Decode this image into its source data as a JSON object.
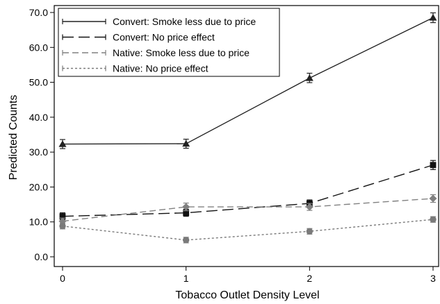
{
  "chart_data": {
    "type": "line",
    "title": "",
    "xlabel": "Tobacco Outlet Density Level",
    "ylabel": "Predicted Counts",
    "x": [
      0,
      1,
      2,
      3
    ],
    "x_tick_labels": [
      "0",
      "1",
      "2",
      "3"
    ],
    "xlim": [
      0,
      3
    ],
    "ylim": [
      0,
      70
    ],
    "y_ticks": [
      0,
      10,
      20,
      30,
      40,
      50,
      60,
      70
    ],
    "y_tick_labels": [
      "0.0",
      "10.0",
      "20.0",
      "30.0",
      "40.0",
      "50.0",
      "60.0",
      "70.0"
    ],
    "grid": false,
    "legend_position": "top-left",
    "series": [
      {
        "name": "Convert: Smoke less due to price",
        "values": [
          32.3,
          32.4,
          51.2,
          68.5
        ],
        "ci": [
          [
            31.0,
            33.6
          ],
          [
            31.1,
            33.7
          ],
          [
            49.9,
            52.6
          ],
          [
            67.1,
            69.9
          ]
        ],
        "color": "#222222",
        "dash": "solid",
        "marker": "triangle"
      },
      {
        "name": "Convert: No price effect",
        "values": [
          11.6,
          12.6,
          15.3,
          26.3
        ],
        "ci": [
          [
            10.6,
            12.6
          ],
          [
            11.6,
            13.6
          ],
          [
            14.3,
            16.3
          ],
          [
            25.0,
            27.6
          ]
        ],
        "color": "#111111",
        "dash": "long",
        "marker": "square"
      },
      {
        "name": "Native: Smoke less due to price",
        "values": [
          10.2,
          14.3,
          14.3,
          16.7
        ],
        "ci": [
          [
            9.3,
            11.1
          ],
          [
            13.2,
            15.4
          ],
          [
            13.3,
            15.3
          ],
          [
            15.6,
            17.8
          ]
        ],
        "color": "#808080",
        "dash": "medium",
        "marker": "diamond"
      },
      {
        "name": "Native: No price effect",
        "values": [
          8.8,
          4.8,
          7.3,
          10.7
        ],
        "ci": [
          [
            8.0,
            9.6
          ],
          [
            4.0,
            5.6
          ],
          [
            6.5,
            8.1
          ],
          [
            9.9,
            11.5
          ]
        ],
        "color": "#7a7a7a",
        "dash": "short",
        "marker": "circle"
      }
    ]
  }
}
